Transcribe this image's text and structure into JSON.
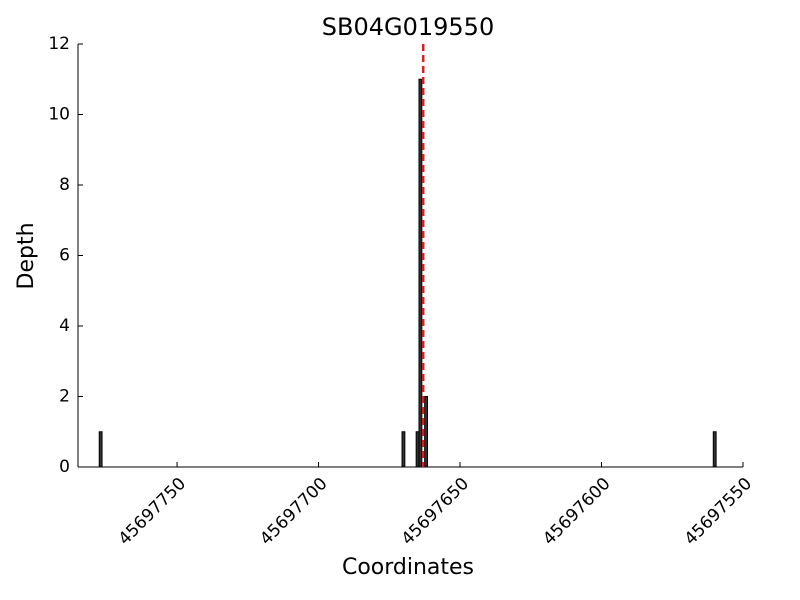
{
  "chart_data": {
    "type": "bar",
    "title": "SB04G019550",
    "x_label": "Coordinates",
    "y_label": "Depth",
    "x": [
      45697777,
      45697670,
      45697665,
      45697664,
      45697662,
      45697560
    ],
    "values": [
      1,
      1,
      1,
      11,
      2,
      1
    ],
    "color": "#333333",
    "edge_color": "#000000",
    "vline": 45697663,
    "vline_color": "#e31a1c",
    "xlim": [
      45697785,
      45697550
    ],
    "xticks": [
      45697750,
      45697700,
      45697650,
      45697600,
      45697550
    ],
    "ylim": [
      0,
      12
    ],
    "yticks": [
      0,
      2,
      4,
      6,
      8,
      10,
      12
    ]
  }
}
